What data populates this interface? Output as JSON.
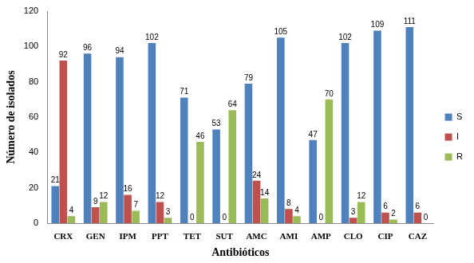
{
  "chart_data": {
    "type": "bar",
    "x_label": "Antibióticos",
    "y_label": "Número de isolados",
    "categories": [
      "CRX",
      "GEN",
      "IPM",
      "PPT",
      "TET",
      "SUT",
      "AMC",
      "AMI",
      "AMP",
      "CLO",
      "CIP",
      "CAZ"
    ],
    "series": [
      {
        "name": "S",
        "color": "#4f81bd",
        "values": [
          21,
          96,
          94,
          102,
          71,
          53,
          79,
          105,
          47,
          102,
          109,
          111
        ]
      },
      {
        "name": "I",
        "color": "#c0504d",
        "values": [
          92,
          9,
          16,
          12,
          0,
          0,
          24,
          8,
          0,
          3,
          6,
          6
        ]
      },
      {
        "name": "R",
        "color": "#9bbb59",
        "values": [
          4,
          12,
          7,
          3,
          46,
          64,
          14,
          4,
          70,
          12,
          2,
          0
        ]
      }
    ],
    "ylim": [
      0,
      120
    ],
    "yticks": [
      0,
      20,
      40,
      60,
      80,
      100,
      120
    ],
    "grid": false,
    "legend": "right",
    "data_labels": true
  }
}
